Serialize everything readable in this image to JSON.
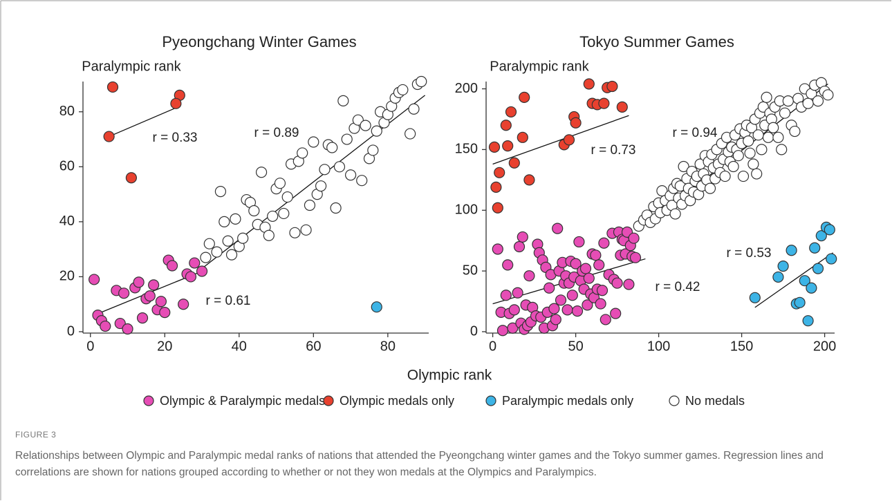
{
  "figure": {
    "label": "FIGURE 3",
    "caption": "Relationships between Olympic and Paralympic medal ranks of nations that attended the Pyeongchang winter games and the Tokyo summer games. Regression lines and correlations are shown for nations grouped according to whether or not they won medals at the Olympics and Paralympics.",
    "x_label": "Olympic rank"
  },
  "chart_data": [
    {
      "type": "scatter",
      "title": "Pyeongchang Winter Games",
      "y_label": "Paralympic rank",
      "xlim": [
        -2,
        91
      ],
      "ylim": [
        0,
        91
      ],
      "xticks": [
        0,
        20,
        40,
        60,
        80
      ],
      "yticks": [
        0,
        20,
        40,
        60,
        80
      ],
      "series": [
        {
          "name": "Olympic & Paralympic medals",
          "color": "#e64db5",
          "x": [
            1,
            2,
            3,
            4,
            7,
            8,
            9,
            10,
            12,
            13,
            14,
            15,
            16,
            17,
            18,
            19,
            20,
            21,
            22,
            25,
            26,
            27,
            28,
            30
          ],
          "y": [
            19,
            6,
            4,
            2,
            15,
            3,
            14,
            1,
            16,
            18,
            5,
            12,
            13,
            17,
            8,
            11,
            7,
            26,
            24,
            10,
            21,
            20,
            25,
            22
          ]
        },
        {
          "name": "Olympic medals only",
          "color": "#e8412f",
          "x": [
            6,
            24,
            23,
            5,
            11
          ],
          "y": [
            89,
            86,
            83,
            71,
            56
          ]
        },
        {
          "name": "Paralympic medals only",
          "color": "#3db4e6",
          "x": [
            77
          ],
          "y": [
            9
          ]
        },
        {
          "name": "No medals",
          "color": "#ffffff",
          "x": [
            31,
            32,
            34,
            35,
            36,
            37,
            38,
            39,
            40,
            41,
            42,
            43,
            44,
            45,
            46,
            47,
            48,
            49,
            50,
            51,
            52,
            53,
            54,
            55,
            56,
            57,
            58,
            59,
            60,
            61,
            62,
            63,
            64,
            65,
            66,
            67,
            68,
            69,
            70,
            71,
            72,
            73,
            74,
            75,
            76,
            77,
            78,
            79,
            80,
            81,
            82,
            83,
            84,
            86,
            87,
            88,
            89
          ],
          "y": [
            27,
            32,
            29,
            51,
            40,
            33,
            28,
            41,
            31,
            34,
            48,
            47,
            44,
            39,
            58,
            38,
            35,
            42,
            52,
            54,
            43,
            49,
            61,
            36,
            62,
            65,
            37,
            46,
            69,
            50,
            53,
            59,
            68,
            67,
            45,
            60,
            84,
            70,
            57,
            74,
            77,
            55,
            75,
            63,
            66,
            73,
            80,
            76,
            79,
            82,
            85,
            87,
            88,
            72,
            81,
            90,
            91
          ]
        }
      ],
      "fits": [
        {
          "x": [
            1,
            30
          ],
          "y": [
            6,
            22
          ]
        },
        {
          "x": [
            5,
            24
          ],
          "y": [
            71,
            82
          ]
        },
        {
          "x": [
            30,
            90
          ],
          "y": [
            23,
            86
          ]
        }
      ],
      "annotations": [
        "r = 0.61",
        "r = 0.33",
        "r = 0.89"
      ]
    },
    {
      "type": "scatter",
      "title": "Tokyo Summer Games",
      "y_label": "Paralympic rank",
      "xlim": [
        -4,
        206
      ],
      "ylim": [
        0,
        206
      ],
      "xticks": [
        0,
        50,
        100,
        150,
        200
      ],
      "yticks": [
        0,
        50,
        100,
        150,
        200
      ],
      "series": [
        {
          "color": "#e64db5",
          "x": [
            3,
            5,
            6,
            8,
            9,
            10,
            12,
            13,
            15,
            16,
            17,
            18,
            19,
            20,
            21,
            22,
            23,
            24,
            26,
            27,
            28,
            29,
            30,
            31,
            32,
            33,
            34,
            35,
            36,
            37,
            38,
            39,
            40,
            41,
            42,
            43,
            44,
            45,
            46,
            47,
            48,
            49,
            50,
            51,
            52,
            53,
            54,
            55,
            56,
            57,
            58,
            59,
            60,
            61,
            62,
            63,
            64,
            65,
            66,
            67,
            68,
            70,
            72,
            73,
            74,
            75,
            76,
            77,
            78,
            79,
            80,
            81,
            82,
            83,
            84,
            85,
            86
          ],
          "y": [
            68,
            16,
            1,
            30,
            55,
            15,
            3,
            18,
            32,
            70,
            7,
            78,
            2,
            22,
            5,
            46,
            8,
            20,
            13,
            72,
            65,
            12,
            59,
            3,
            53,
            16,
            36,
            47,
            5,
            19,
            10,
            85,
            50,
            26,
            57,
            40,
            46,
            18,
            40,
            58,
            30,
            45,
            56,
            17,
            74,
            42,
            50,
            35,
            52,
            22,
            44,
            31,
            64,
            28,
            63,
            35,
            55,
            23,
            34,
            73,
            10,
            47,
            81,
            43,
            15,
            40,
            82,
            63,
            76,
            75,
            64,
            82,
            39,
            71,
            62,
            77,
            61
          ]
        },
        {
          "color": "#e8412f",
          "x": [
            1,
            2,
            3,
            4,
            8,
            9,
            11,
            13,
            18,
            19,
            22,
            43,
            46,
            49,
            50,
            58,
            60,
            63,
            67,
            69,
            72,
            78
          ],
          "y": [
            152,
            119,
            102,
            131,
            170,
            153,
            181,
            139,
            160,
            193,
            125,
            154,
            158,
            177,
            172,
            204,
            188,
            187,
            188,
            201,
            202,
            185
          ]
        },
        {
          "color": "#3db4e6",
          "x": [
            158,
            172,
            175,
            180,
            183,
            185,
            188,
            190,
            192,
            194,
            196,
            198,
            201,
            203,
            204
          ],
          "y": [
            28,
            45,
            54,
            67,
            23,
            24,
            42,
            9,
            36,
            69,
            52,
            79,
            86,
            84,
            60
          ]
        },
        {
          "color": "#ffffff",
          "x": [
            88,
            91,
            93,
            95,
            97,
            98,
            100,
            101,
            102,
            104,
            105,
            107,
            108,
            109,
            110,
            111,
            112,
            113,
            114,
            115,
            116,
            117,
            118,
            119,
            120,
            121,
            122,
            123,
            124,
            125,
            126,
            127,
            128,
            129,
            130,
            131,
            132,
            133,
            134,
            135,
            136,
            137,
            138,
            139,
            140,
            141,
            142,
            143,
            144,
            145,
            146,
            147,
            148,
            149,
            150,
            151,
            152,
            153,
            154,
            155,
            156,
            157,
            158,
            159,
            160,
            161,
            162,
            163,
            164,
            165,
            166,
            167,
            168,
            169,
            170,
            172,
            173,
            174,
            176,
            178,
            180,
            182,
            184,
            186,
            188,
            190,
            192,
            194,
            196,
            198,
            200,
            202
          ],
          "y": [
            87,
            92,
            96,
            90,
            103,
            93,
            106,
            98,
            116,
            108,
            100,
            112,
            104,
            118,
            97,
            122,
            110,
            120,
            105,
            136,
            112,
            126,
            118,
            108,
            132,
            115,
            124,
            128,
            113,
            138,
            120,
            130,
            145,
            125,
            140,
            118,
            146,
            135,
            126,
            150,
            138,
            131,
            155,
            142,
            128,
            160,
            148,
            140,
            152,
            136,
            162,
            150,
            145,
            167,
            155,
            128,
            164,
            170,
            157,
            147,
            168,
            138,
            175,
            130,
            162,
            180,
            150,
            185,
            170,
            193,
            160,
            180,
            175,
            168,
            185,
            160,
            190,
            150,
            180,
            190,
            170,
            165,
            192,
            185,
            200,
            188,
            196,
            203,
            190,
            205,
            198,
            195
          ]
        }
      ],
      "fits": [
        {
          "x": [
            0,
            92
          ],
          "y": [
            23,
            60
          ]
        },
        {
          "x": [
            0,
            82
          ],
          "y": [
            138,
            178
          ]
        },
        {
          "x": [
            158,
            205
          ],
          "y": [
            20,
            65
          ]
        },
        {
          "x": [
            92,
            202
          ],
          "y": [
            88,
            204
          ]
        }
      ],
      "annotations": [
        "r = 0.42",
        "r = 0.73",
        "r = 0.53",
        "r = 0.94"
      ]
    }
  ]
}
